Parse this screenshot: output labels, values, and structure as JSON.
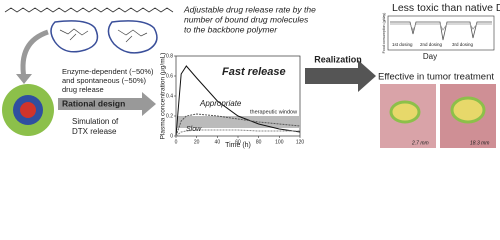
{
  "note_lines": [
    "Adjustable drug release rate by the",
    "number of bound drug molecules",
    "to the backbone polymer"
  ],
  "mechanism_lines": [
    "Enzyme-dependent (~50%)",
    "and spontaneous (~50%)",
    "drug release"
  ],
  "step1": "Rational design",
  "simulation_lines": [
    "Simulation of",
    "DTX release"
  ],
  "plot": {
    "y_label": "Plasma concentration (μg/mL)",
    "x_label": "Time (h)",
    "xlim": [
      0,
      120
    ],
    "xticks": [
      0,
      20,
      40,
      60,
      80,
      100,
      120
    ],
    "ylim": [
      0,
      0.8
    ],
    "yticks": [
      0,
      0.2,
      0.4,
      0.6,
      0.8
    ],
    "x": [
      0,
      5,
      10,
      20,
      40,
      60,
      80,
      100,
      120
    ],
    "window": {
      "label": "therapeutic window",
      "range": [
        0.08,
        0.2
      ]
    },
    "series": [
      {
        "name": "Fast release",
        "color": "#111111",
        "values": [
          0,
          0.62,
          0.7,
          0.58,
          0.35,
          0.2,
          0.12,
          0.07,
          0.04
        ]
      },
      {
        "name": "Appropriate",
        "color": "#555555",
        "values": [
          0,
          0.15,
          0.2,
          0.22,
          0.2,
          0.17,
          0.14,
          0.12,
          0.1
        ]
      },
      {
        "name": "Slow",
        "color": "#888888",
        "values": [
          0,
          0.04,
          0.05,
          0.06,
          0.06,
          0.06,
          0.05,
          0.05,
          0.05
        ]
      }
    ]
  },
  "step2": "Realization",
  "toxicity": {
    "title": "Less toxic than native DTX",
    "y_label": "Food consumption (g/day)",
    "x_label": "Day",
    "dosing": [
      "1st dosing",
      "2nd dosing",
      "3rd dosing"
    ]
  },
  "efficacy": {
    "title": "Effective in tumor treatment",
    "image_labels": [
      "2.7 mm",
      "18.3 mm"
    ]
  }
}
